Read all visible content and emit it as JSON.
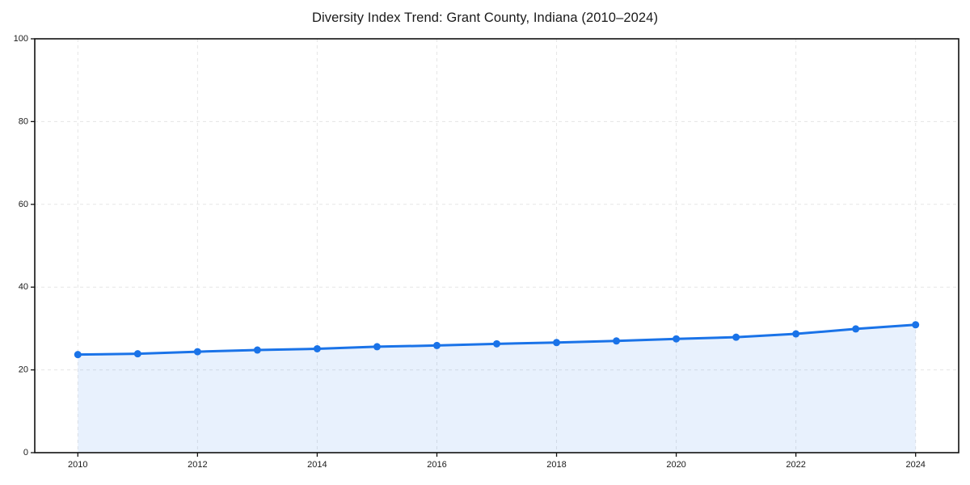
{
  "chart_data": {
    "type": "line",
    "title": "Diversity Index Trend: Grant County, Indiana (2010–2024)",
    "x": [
      2010,
      2011,
      2012,
      2013,
      2014,
      2015,
      2016,
      2017,
      2018,
      2019,
      2020,
      2021,
      2022,
      2023,
      2024
    ],
    "series": [
      {
        "name": "Diversity Index",
        "values": [
          23.7,
          23.9,
          24.4,
          24.8,
          25.1,
          25.6,
          25.9,
          26.3,
          26.6,
          27.0,
          27.5,
          27.9,
          28.7,
          29.9,
          30.9
        ]
      }
    ],
    "xlabel": "",
    "ylabel": "",
    "xlim": [
      2009.28,
      2024.72
    ],
    "ylim": [
      0,
      100
    ],
    "xticks": [
      2010,
      2012,
      2014,
      2016,
      2018,
      2020,
      2022,
      2024
    ],
    "yticks": [
      0,
      20,
      40,
      60,
      80,
      100
    ],
    "grid": true,
    "grid_style": "dashed",
    "legend": false,
    "area_fill": true,
    "colors": {
      "line": "#1a73e8",
      "marker": "#1a73e8",
      "fill": "rgba(26,115,232,0.10)",
      "grid": "#e5e5e5",
      "spine": "#111111",
      "text": "#1a1a1a",
      "background": "#ffffff"
    }
  }
}
